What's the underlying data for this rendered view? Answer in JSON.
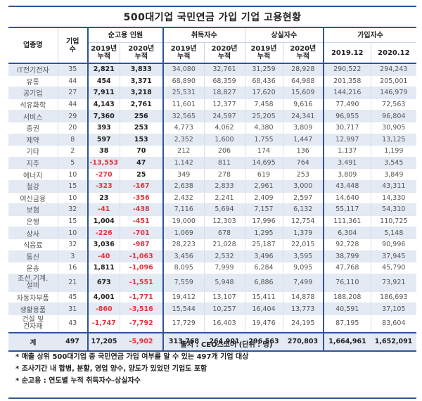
{
  "title": "500대기업 국민연금 가입 기업 고용현황",
  "headers": {
    "industry": "업종명",
    "company_count": "기업\n수",
    "company_count_l1": "기업",
    "company_count_l2": "수",
    "net_employment": "순고용 인원",
    "acquired": "취득자수",
    "lost": "상실자수",
    "subscribers": "가입자수",
    "y2019_cum_l1": "2019년",
    "y2020_cum_l1": "2020년",
    "cum_l2": "누적",
    "sub_2019": "2019.12",
    "sub_2020": "2020.12"
  },
  "rows": [
    {
      "industry": "IT전기전자",
      "count": "35",
      "net2019": "2,821",
      "net2020": "3,833",
      "acq2019": "34,080",
      "acq2020": "32,761",
      "lost2019": "31,259",
      "lost2020": "28,928",
      "sub2019": "290,522",
      "sub2020": "294,243"
    },
    {
      "industry": "유통",
      "count": "44",
      "net2019": "454",
      "net2020": "3,371",
      "acq2019": "68,890",
      "acq2020": "68,359",
      "lost2019": "68,436",
      "lost2020": "64,988",
      "sub2019": "201,358",
      "sub2020": "205,001"
    },
    {
      "industry": "공기업",
      "count": "27",
      "net2019": "7,911",
      "net2020": "3,218",
      "acq2019": "25,531",
      "acq2020": "18,827",
      "lost2019": "17,620",
      "lost2020": "15,609",
      "sub2019": "144,216",
      "sub2020": "146,979"
    },
    {
      "industry": "석유화학",
      "count": "44",
      "net2019": "4,143",
      "net2020": "2,761",
      "acq2019": "11,601",
      "acq2020": "12,377",
      "lost2019": "7,458",
      "lost2020": "9,616",
      "sub2019": "77,490",
      "sub2020": "72,563"
    },
    {
      "industry": "서비스",
      "count": "29",
      "net2019": "7,360",
      "net2020": "256",
      "acq2019": "32,565",
      "acq2020": "24,597",
      "lost2019": "25,205",
      "lost2020": "24,341",
      "sub2019": "96,955",
      "sub2020": "96,804"
    },
    {
      "industry": "증권",
      "count": "20",
      "net2019": "393",
      "net2020": "253",
      "acq2019": "4,773",
      "acq2020": "4,062",
      "lost2019": "4,380",
      "lost2020": "3,809",
      "sub2019": "30,717",
      "sub2020": "30,905"
    },
    {
      "industry": "제약",
      "count": "8",
      "net2019": "597",
      "net2020": "153",
      "acq2019": "2,352",
      "acq2020": "1,600",
      "lost2019": "1,755",
      "lost2020": "1,447",
      "sub2019": "12,997",
      "sub2020": "13,125"
    },
    {
      "industry": "기타",
      "count": "2",
      "net2019": "38",
      "net2020": "70",
      "acq2019": "212",
      "acq2020": "206",
      "lost2019": "174",
      "lost2020": "136",
      "sub2019": "1,137",
      "sub2020": "1,199"
    },
    {
      "industry": "지주",
      "count": "5",
      "net2019": "-13,553",
      "net2020": "47",
      "acq2019": "1,142",
      "acq2020": "811",
      "lost2019": "14,695",
      "lost2020": "764",
      "sub2019": "3,491",
      "sub2020": "3,545"
    },
    {
      "industry": "에너지",
      "count": "10",
      "net2019": "-270",
      "net2020": "25",
      "acq2019": "349",
      "acq2020": "278",
      "lost2019": "619",
      "lost2020": "253",
      "sub2019": "3,809",
      "sub2020": "3,849"
    },
    {
      "industry": "철강",
      "count": "15",
      "net2019": "-323",
      "net2020": "-167",
      "acq2019": "2,638",
      "acq2020": "2,833",
      "lost2019": "2,961",
      "lost2020": "3,000",
      "sub2019": "43,448",
      "sub2020": "43,311"
    },
    {
      "industry": "여신금융",
      "count": "10",
      "net2019": "23",
      "net2020": "-356",
      "acq2019": "2,432",
      "acq2020": "2,241",
      "lost2019": "2,409",
      "lost2020": "2,597",
      "sub2019": "14,640",
      "sub2020": "14,330"
    },
    {
      "industry": "보험",
      "count": "32",
      "net2019": "-41",
      "net2020": "-438",
      "acq2019": "7,116",
      "acq2020": "5,694",
      "lost2019": "7,157",
      "lost2020": "6,132",
      "sub2019": "55,117",
      "sub2020": "54,310"
    },
    {
      "industry": "은행",
      "count": "15",
      "net2019": "1,004",
      "net2020": "-451",
      "acq2019": "19,000",
      "acq2020": "12,303",
      "lost2019": "17,996",
      "lost2020": "12,754",
      "sub2019": "111,361",
      "sub2020": "110,725"
    },
    {
      "industry": "상사",
      "count": "10",
      "net2019": "-226",
      "net2020": "-701",
      "acq2019": "1,069",
      "acq2020": "678",
      "lost2019": "1,295",
      "lost2020": "1,379",
      "sub2019": "6,304",
      "sub2020": "5,148"
    },
    {
      "industry": "식음료",
      "count": "32",
      "net2019": "3,036",
      "net2020": "-987",
      "acq2019": "28,223",
      "acq2020": "21,028",
      "lost2019": "25,187",
      "lost2020": "22,015",
      "sub2019": "92,728",
      "sub2020": "90,996"
    },
    {
      "industry": "통신",
      "count": "3",
      "net2019": "-40",
      "net2020": "-1,063",
      "acq2019": "3,456",
      "acq2020": "2,532",
      "lost2019": "3,496",
      "lost2020": "3,595",
      "sub2019": "38,799",
      "sub2020": "37,945"
    },
    {
      "industry": "운송",
      "count": "16",
      "net2019": "1,811",
      "net2020": "-1,096",
      "acq2019": "8,095",
      "acq2020": "7,999",
      "lost2019": "6,284",
      "lost2020": "9,095",
      "sub2019": "47,768",
      "sub2020": "45,790"
    },
    {
      "industry": "조선.기계.설비",
      "industry_l1": "조선.기계.",
      "industry_l2": "설비",
      "count": "21",
      "net2019": "673",
      "net2020": "-1,551",
      "acq2019": "7,559",
      "acq2020": "5,948",
      "lost2019": "6,886",
      "lost2020": "7,499",
      "sub2019": "76,110",
      "sub2020": "73,921"
    },
    {
      "industry": "자동차부품",
      "count": "45",
      "net2019": "4,001",
      "net2020": "-1,771",
      "acq2019": "19,412",
      "acq2020": "13,107",
      "lost2019": "15,411",
      "lost2020": "14,878",
      "sub2019": "188,208",
      "sub2020": "186,693"
    },
    {
      "industry": "생활용품",
      "count": "31",
      "net2019": "-860",
      "net2020": "-3,516",
      "acq2019": "15,544",
      "acq2020": "10,257",
      "lost2019": "16,404",
      "lost2020": "13,773",
      "sub2019": "40,591",
      "sub2020": "37,105"
    },
    {
      "industry": "건설 및 건자재",
      "industry_l1": "건설 및",
      "industry_l2": "건자재",
      "count": "43",
      "net2019": "-1,747",
      "net2020": "-7,792",
      "acq2019": "17,729",
      "acq2020": "16,403",
      "lost2019": "19,476",
      "lost2020": "24,195",
      "sub2019": "87,195",
      "sub2020": "83,604"
    }
  ],
  "total": {
    "industry": "계",
    "count": "497",
    "net2019": "17,205",
    "net2020": "-5,902",
    "acq2019": "313,768",
    "acq2020": "264,901",
    "lost2019": "296,563",
    "lost2020": "270,803",
    "sub2019": "1,664,961",
    "sub2020": "1,652,091"
  },
  "footer": {
    "source": "출처 : CEO스코어 (단위 : 명)",
    "notes": [
      "* 매출 상위 500대기업 중 국민연금 가입 여부를 알 수 있는 497개 기업 대상",
      "* 조사기간 내 합병, 분할, 영업 양수, 양도가 있었던 기업도 포함",
      "* 순고용 : 연도별 누적 취득자수-상실자수"
    ]
  },
  "colors": {
    "rule": "#2f5597",
    "alt_row": "#e4eaf4",
    "negative": "#e8323c"
  }
}
